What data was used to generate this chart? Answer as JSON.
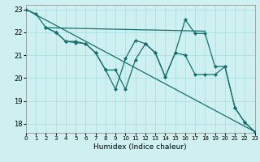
{
  "xlabel": "Humidex (Indice chaleur)",
  "xlim": [
    0,
    23
  ],
  "ylim": [
    17.6,
    23.2
  ],
  "yticks": [
    18,
    19,
    20,
    21,
    22,
    23
  ],
  "xticks": [
    0,
    1,
    2,
    3,
    4,
    5,
    6,
    7,
    8,
    9,
    10,
    11,
    12,
    13,
    14,
    15,
    16,
    17,
    18,
    19,
    20,
    21,
    22,
    23
  ],
  "bg_color": "#cef0f0",
  "grid_color": "#aadddd",
  "line_color": "#1a6e6e",
  "trend_line": {
    "x": [
      0,
      23
    ],
    "y": [
      23.0,
      17.65
    ]
  },
  "flat_line": {
    "x": [
      2,
      18
    ],
    "y": [
      22.2,
      22.05
    ]
  },
  "series1_x": [
    0,
    1,
    2,
    3,
    4,
    5,
    6,
    7,
    8,
    9,
    10,
    11,
    12,
    13,
    14,
    15,
    16,
    17,
    18,
    19,
    20,
    21,
    22,
    23
  ],
  "series1_y": [
    23.0,
    22.8,
    22.2,
    22.0,
    21.6,
    21.6,
    21.5,
    21.1,
    20.35,
    19.5,
    20.85,
    21.65,
    21.5,
    21.1,
    20.05,
    21.1,
    21.0,
    20.15,
    20.15,
    20.15,
    20.5,
    18.7,
    18.05,
    17.65
  ],
  "series2_x": [
    2,
    3,
    4,
    5,
    6,
    7,
    8,
    9,
    10,
    11,
    12,
    13,
    14,
    15,
    16,
    17,
    18,
    19,
    20,
    21,
    22,
    23
  ],
  "series2_y": [
    22.2,
    22.0,
    21.6,
    21.55,
    21.5,
    21.1,
    20.35,
    20.35,
    19.5,
    20.8,
    21.5,
    21.1,
    20.05,
    21.1,
    22.55,
    21.95,
    21.95,
    20.5,
    20.5,
    18.7,
    18.05,
    17.65
  ]
}
